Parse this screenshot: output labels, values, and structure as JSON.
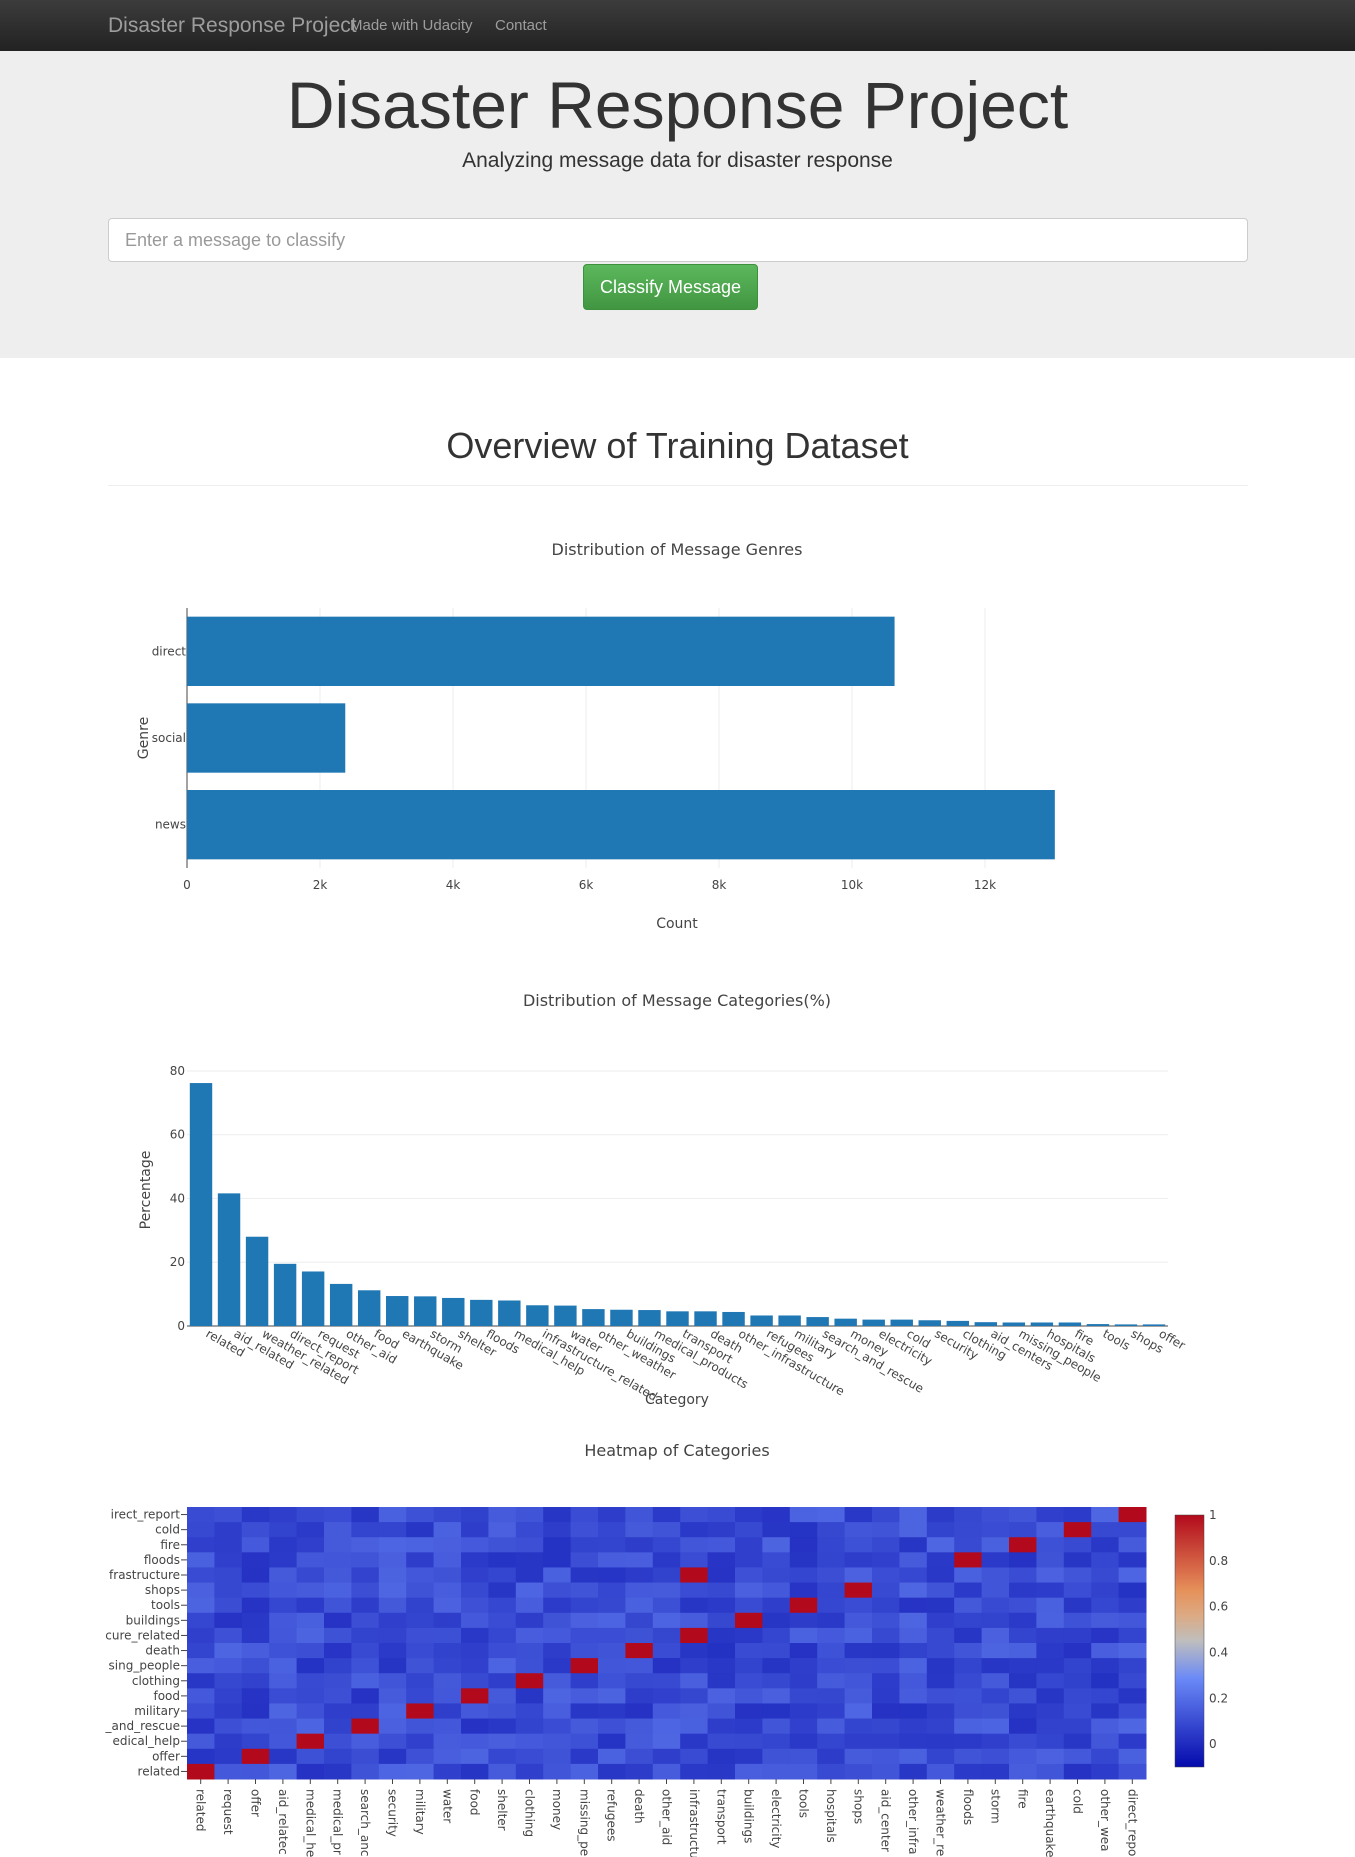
{
  "navbar": {
    "brand": "Disaster Response Project",
    "links": [
      "Made with Udacity",
      "Contact"
    ]
  },
  "hero": {
    "title": "Disaster Response Project",
    "subtitle": "Analyzing message data for disaster response",
    "input_placeholder": "Enter a message to classify",
    "button_label": "Classify Message"
  },
  "section_title": "Overview of Training Dataset",
  "colors": {
    "bar": "#1f77b4",
    "navbar": "#222222",
    "button": "#5cb85c"
  },
  "chart_data": [
    {
      "type": "bar",
      "orientation": "horizontal",
      "title": "Distribution of Message Genres",
      "xlabel": "Count",
      "ylabel": "Genre",
      "categories": [
        "direct",
        "social",
        "news"
      ],
      "values": [
        10640,
        2380,
        13050
      ],
      "xlim": [
        0,
        14000
      ],
      "xticks": [
        0,
        2000,
        4000,
        6000,
        8000,
        10000,
        12000
      ],
      "xtick_labels": [
        "0",
        "2k",
        "4k",
        "6k",
        "8k",
        "10k",
        "12k"
      ],
      "grid": true
    },
    {
      "type": "bar",
      "title": "Distribution of Message Categories(%)",
      "xlabel": "Category",
      "ylabel": "Percentage",
      "ylim": [
        0,
        85
      ],
      "yticks": [
        0,
        20,
        40,
        60,
        80
      ],
      "grid": true,
      "categories": [
        "related",
        "aid_related",
        "weather_related",
        "direct_report",
        "request",
        "other_aid",
        "food",
        "earthquake",
        "storm",
        "shelter",
        "floods",
        "medical_help",
        "infrastructure_related",
        "water",
        "other_weather",
        "buildings",
        "medical_products",
        "transport",
        "death",
        "other_infrastructure",
        "refugees",
        "military",
        "search_and_rescue",
        "money",
        "electricity",
        "cold",
        "security",
        "clothing",
        "aid_centers",
        "missing_people",
        "hospitals",
        "fire",
        "tools",
        "shops",
        "offer"
      ],
      "values": [
        76.2,
        41.6,
        28.0,
        19.5,
        17.1,
        13.2,
        11.2,
        9.4,
        9.3,
        8.8,
        8.2,
        8.0,
        6.5,
        6.4,
        5.3,
        5.1,
        5.0,
        4.6,
        4.6,
        4.4,
        3.3,
        3.3,
        2.8,
        2.3,
        2.0,
        2.0,
        1.8,
        1.6,
        1.2,
        1.1,
        1.1,
        1.1,
        0.6,
        0.5,
        0.5
      ]
    },
    {
      "type": "heatmap",
      "title": "Heatmap of Categories",
      "x_labels": [
        "related",
        "request",
        "offer",
        "aid_related",
        "medical_help",
        "medical_products",
        "search_and_rescue",
        "security",
        "military",
        "water",
        "food",
        "shelter",
        "clothing",
        "money",
        "missing_people",
        "refugees",
        "death",
        "other_aid",
        "infrastructure_related",
        "transport",
        "buildings",
        "electricity",
        "tools",
        "hospitals",
        "shops",
        "aid_centers",
        "other_infrastructure",
        "weather_related",
        "floods",
        "storm",
        "fire",
        "earthquake",
        "cold",
        "other_weather",
        "direct_report"
      ],
      "y_labels": [
        "direct_report",
        "cold",
        "fire",
        "floods",
        "infrastructure_related",
        "shops",
        "tools",
        "buildings",
        "infrastructure_related",
        "death",
        "missing_people",
        "clothing",
        "food",
        "military",
        "search_and_rescue",
        "medical_help",
        "offer",
        "related"
      ],
      "y_labels_display": [
        "irect_report",
        "cold",
        "fire",
        "floods",
        "frastructure",
        "shops",
        "tools",
        "buildings",
        "cure_related",
        "death",
        "sing_people",
        "clothing",
        "food",
        "military",
        "_and_rescue",
        "edical_help",
        "offer",
        "related"
      ],
      "x_labels_display": [
        "related",
        "request",
        "offer",
        "aid_relatec",
        "medical_he",
        "medical_pr",
        "search_anc",
        "security",
        "military",
        "water",
        "food",
        "shelter",
        "clothing",
        "money",
        "missing_pe",
        "refugees",
        "death",
        "other_aid",
        "infrastructu",
        "transport",
        "buildings",
        "electricity",
        "tools",
        "hospitals",
        "shops",
        "aid_center",
        "other_infra",
        "weather_re",
        "floods",
        "storm",
        "fire",
        "earthquake",
        "cold",
        "other_wea",
        "direct_repo"
      ],
      "colorscale": "coolwarm",
      "zlim": [
        -0.1,
        1
      ],
      "colorbar_ticks": [
        1,
        0.8,
        0.6,
        0.4,
        0.2,
        0
      ],
      "colorbar_tick_labels": [
        "1",
        "0.8",
        "0.6",
        "0.4",
        "0.2",
        "0"
      ]
    }
  ]
}
